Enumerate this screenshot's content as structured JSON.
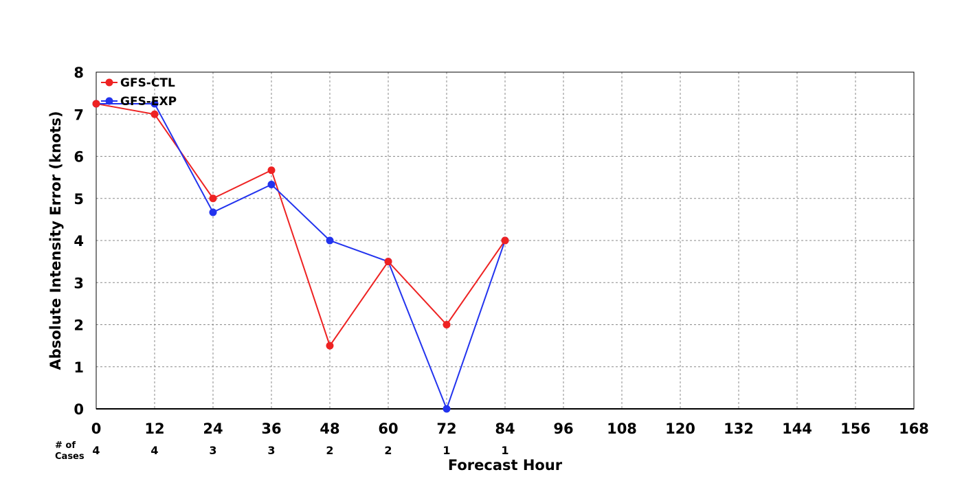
{
  "chart_data": {
    "type": "line",
    "title": "",
    "xlabel": "Forecast Hour",
    "ylabel": "Absolute Intensity Error (knots)",
    "x": [
      0,
      12,
      24,
      36,
      48,
      60,
      72,
      84
    ],
    "xticks": [
      0,
      12,
      24,
      36,
      48,
      60,
      72,
      84,
      96,
      108,
      120,
      132,
      144,
      156,
      168
    ],
    "yticks": [
      0,
      1,
      2,
      3,
      4,
      5,
      6,
      7,
      8
    ],
    "xlim": [
      0,
      168
    ],
    "ylim": [
      0,
      8
    ],
    "grid": true,
    "legend_position": "top-left",
    "series": [
      {
        "name": "GFS-CTL",
        "color": "#ee2222",
        "values": [
          7.25,
          7.0,
          5.0,
          5.67,
          1.5,
          3.5,
          2.0,
          4.0
        ]
      },
      {
        "name": "GFS-EXP",
        "color": "#2233ee",
        "values": [
          7.25,
          7.25,
          4.67,
          5.33,
          4.0,
          3.5,
          0.0,
          4.0
        ]
      }
    ],
    "cases": {
      "label_line1": "# of",
      "label_line2": "Cases",
      "values": [
        4,
        4,
        3,
        3,
        2,
        2,
        1,
        1
      ]
    }
  }
}
